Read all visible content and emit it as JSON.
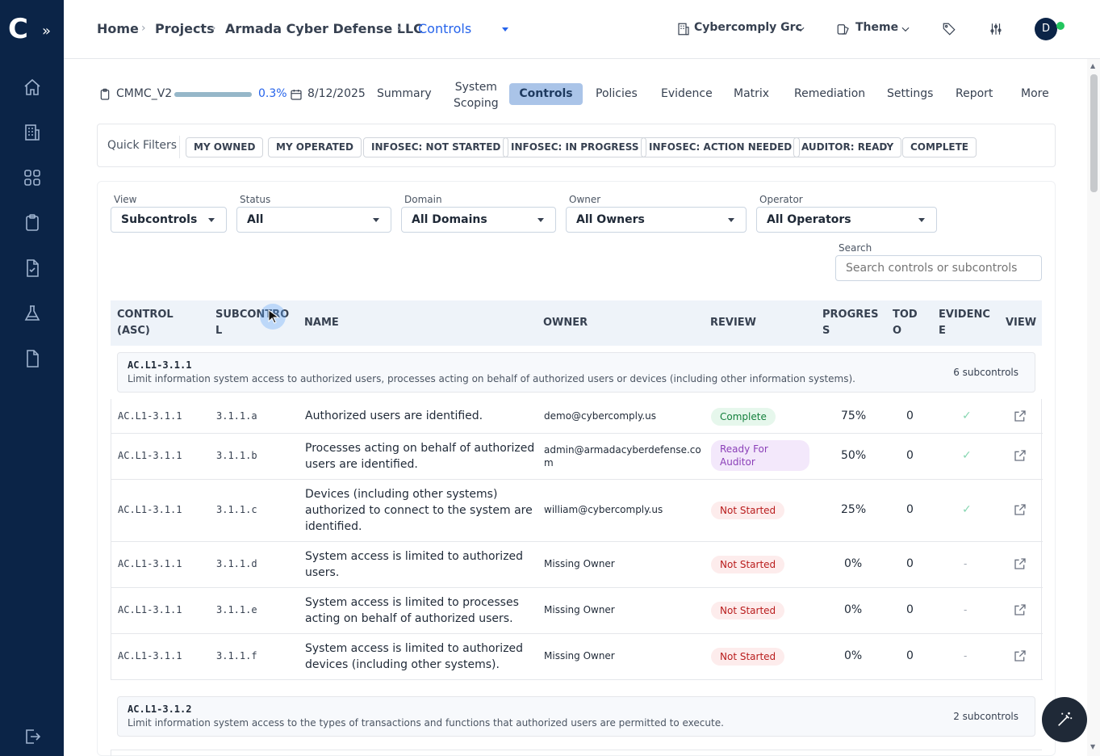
{
  "sidebar": {
    "logo": "C",
    "expand_icon": "double-chevron-right-icon",
    "icons": [
      "home-icon",
      "building-icon",
      "grid-icon",
      "clipboard-icon",
      "file-check-icon",
      "flask-icon",
      "document-icon",
      "logout-icon"
    ]
  },
  "breadcrumb": {
    "items": [
      "Home",
      "Projects",
      "Armada Cyber Defense LLC"
    ],
    "current": "Controls",
    "separator": "›"
  },
  "topbar": {
    "org": "Cybercomply Grc",
    "theme": "Theme",
    "avatar_letter": "D"
  },
  "project": {
    "framework": "CMMC_V2",
    "progress_text": "0.3%",
    "progress_value": 0.3,
    "date": "8/12/2025"
  },
  "tabs": {
    "summary": "Summary",
    "scoping_1": "System",
    "scoping_2": "Scoping",
    "controls": "Controls",
    "policies": "Policies",
    "evidence": "Evidence",
    "matrix": "Matrix",
    "remediation": "Remediation",
    "settings": "Settings",
    "report": "Report",
    "more": "More"
  },
  "quick_filters": {
    "label": "Quick Filters",
    "chips": [
      "MY OWNED",
      "MY OPERATED",
      "INFOSEC: NOT STARTED",
      "INFOSEC: IN PROGRESS",
      "INFOSEC: ACTION NEEDED",
      "AUDITOR: READY",
      "COMPLETE"
    ]
  },
  "filters": {
    "view": {
      "label": "View",
      "value": "Subcontrols"
    },
    "status": {
      "label": "Status",
      "value": "All"
    },
    "domain": {
      "label": "Domain",
      "value": "All Domains"
    },
    "owner": {
      "label": "Owner",
      "value": "All Owners"
    },
    "operator": {
      "label": "Operator",
      "value": "All Operators"
    },
    "search": {
      "label": "Search",
      "placeholder": "Search controls or subcontrols"
    }
  },
  "table": {
    "headers": {
      "control_1": "CONTROL",
      "control_2": "(ASC)",
      "subcontrol_1": "SUBCONTRO",
      "subcontrol_2": "L",
      "name": "NAME",
      "owner": "OWNER",
      "review": "REVIEW",
      "progress_1": "PROGRES",
      "progress_2": "S",
      "todo_1": "TOD",
      "todo_2": "O",
      "evidence_1": "EVIDENC",
      "evidence_2": "E",
      "view": "VIEW"
    },
    "groups": [
      {
        "id": "AC.L1-3.1.1",
        "description": "Limit information system access to authorized users, processes acting on behalf of authorized users or devices (including other information systems).",
        "count": "6 subcontrols",
        "rows": [
          {
            "control": "AC.L1-3.1.1",
            "sub": "3.1.1.a",
            "name_1": "Authorized users are identified.",
            "name_2": "",
            "name_3": "",
            "owner_1": "demo@cybercomply.us",
            "owner_2": "",
            "review_1": "Complete",
            "review_2": "",
            "progress": "75%",
            "todo": "0",
            "evidence": "✓"
          },
          {
            "control": "AC.L1-3.1.1",
            "sub": "3.1.1.b",
            "name_1": "Processes acting on behalf of authorized",
            "name_2": "users are identified.",
            "name_3": "",
            "owner_1": "admin@armadacyberdefense.co",
            "owner_2": "m",
            "review_1": "Ready For",
            "review_2": "Auditor",
            "progress": "50%",
            "todo": "0",
            "evidence": "✓"
          },
          {
            "control": "AC.L1-3.1.1",
            "sub": "3.1.1.c",
            "name_1": "Devices (including other systems)",
            "name_2": "authorized to connect to the system are",
            "name_3": "identified.",
            "owner_1": "william@cybercomply.us",
            "owner_2": "",
            "review_1": "Not Started",
            "review_2": "",
            "progress": "25%",
            "todo": "0",
            "evidence": "✓"
          },
          {
            "control": "AC.L1-3.1.1",
            "sub": "3.1.1.d",
            "name_1": "System access is limited to authorized",
            "name_2": "users.",
            "name_3": "",
            "owner_1": "Missing Owner",
            "owner_2": "",
            "review_1": "Not Started",
            "review_2": "",
            "progress": "0%",
            "todo": "0",
            "evidence": "-"
          },
          {
            "control": "AC.L1-3.1.1",
            "sub": "3.1.1.e",
            "name_1": "System access is limited to processes",
            "name_2": "acting on behalf of authorized users.",
            "name_3": "",
            "owner_1": "Missing Owner",
            "owner_2": "",
            "review_1": "Not Started",
            "review_2": "",
            "progress": "0%",
            "todo": "0",
            "evidence": "-"
          },
          {
            "control": "AC.L1-3.1.1",
            "sub": "3.1.1.f",
            "name_1": "System access is limited to authorized",
            "name_2": "devices (including other systems).",
            "name_3": "",
            "owner_1": "Missing Owner",
            "owner_2": "",
            "review_1": "Not Started",
            "review_2": "",
            "progress": "0%",
            "todo": "0",
            "evidence": "-"
          }
        ]
      },
      {
        "id": "AC.L1-3.1.2",
        "description": "Limit information system access to the types of transactions and functions that authorized users are permitted to execute.",
        "count": "2 subcontrols",
        "rows": []
      }
    ]
  },
  "colors": {
    "sidebar": "#0b2447",
    "accent": "#2563eb",
    "active_tab": "#aac4e8"
  }
}
